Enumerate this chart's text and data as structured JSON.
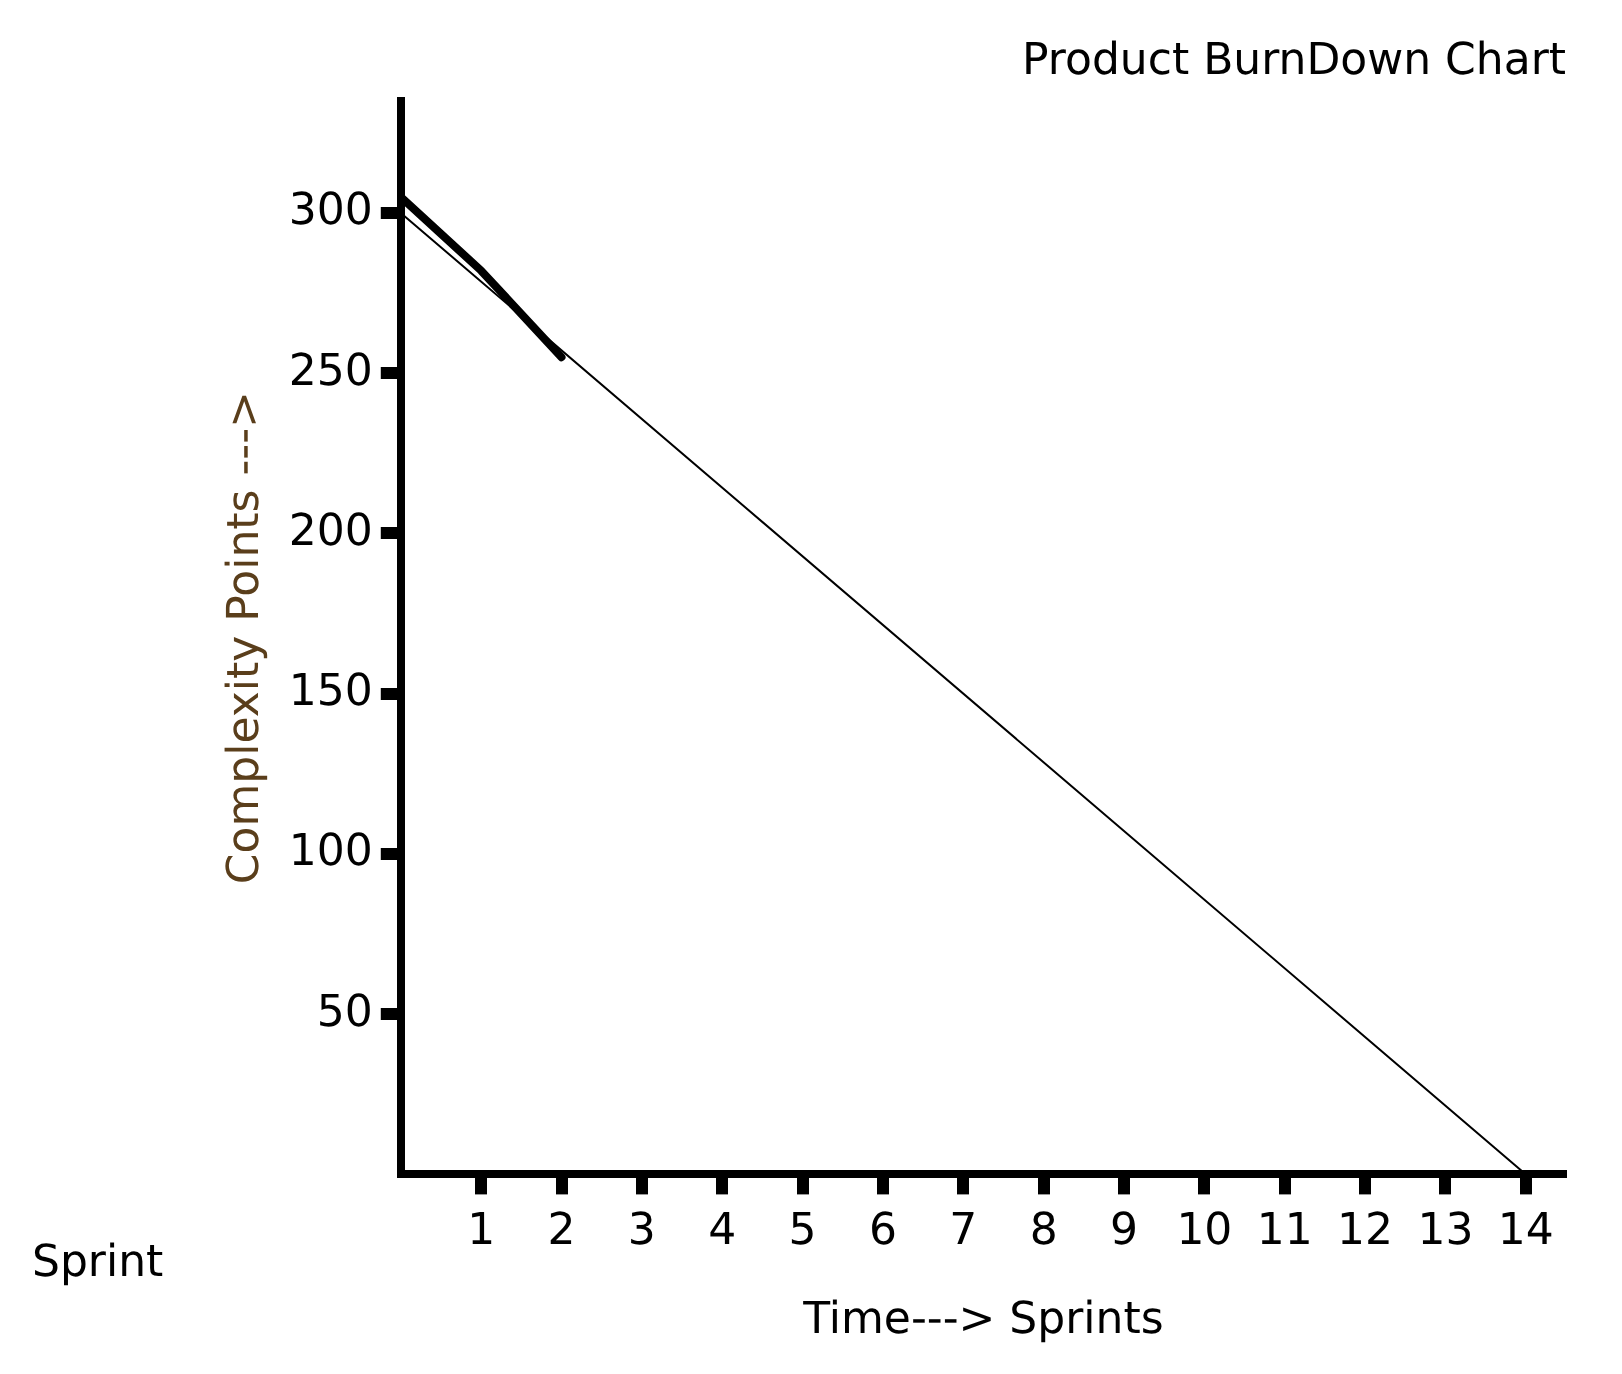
{
  "chart_data": {
    "type": "line",
    "title": "Product BurnDown Chart",
    "xlabel": "Time---> Sprints",
    "ylabel": "Complexity Points --->",
    "annotations": [
      "Sprint"
    ],
    "xlim": [
      0,
      14.5
    ],
    "xticks": [
      1,
      2,
      3,
      4,
      5,
      6,
      7,
      8,
      9,
      10,
      11,
      12,
      13,
      14
    ],
    "ylim": [
      0,
      335
    ],
    "yticks": [
      50,
      100,
      150,
      200,
      250,
      300
    ],
    "grid": false,
    "legend": false,
    "marker": "none",
    "line_style": "solid",
    "series": [
      {
        "color": "#000000",
        "x": [
          0,
          14
        ],
        "values": [
          300,
          0
        ]
      },
      {
        "color": "#000000",
        "x": [
          0,
          1,
          2
        ],
        "values": [
          305,
          282,
          255
        ]
      }
    ]
  }
}
